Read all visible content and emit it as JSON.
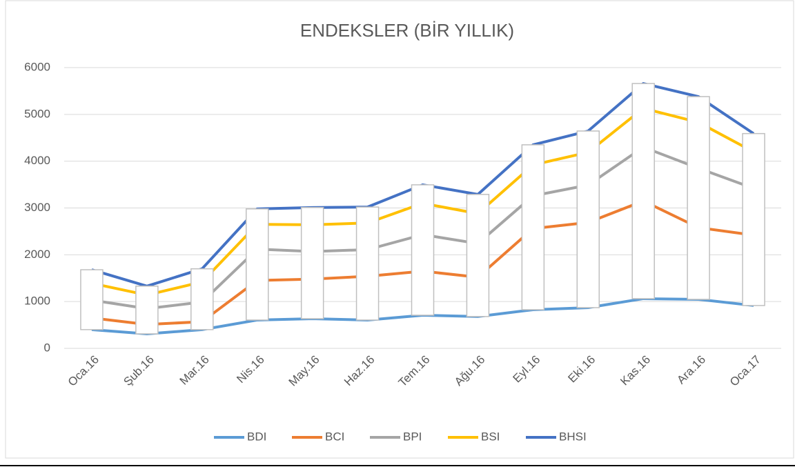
{
  "chart_data": {
    "type": "line",
    "title": "ENDEKSLER (BİR YILLIK)",
    "categories": [
      "Oca.16",
      "Şub.16",
      "Mar.16",
      "Nis.16",
      "May.16",
      "Haz.16",
      "Tem.16",
      "Ağu.16",
      "Eyl.16",
      "Eki.16",
      "Kas.16",
      "Ara.16",
      "Oca.17"
    ],
    "series": [
      {
        "name": "BDI",
        "color": "#5b9bd5",
        "values": [
          400,
          310,
          400,
          605,
          634,
          605,
          708,
          680,
          826,
          870,
          1062,
          1047,
          915
        ]
      },
      {
        "name": "BCI",
        "color": "#ed7d31",
        "values": [
          650,
          510,
          570,
          1450,
          1480,
          1540,
          1650,
          1520,
          2560,
          2690,
          3150,
          2580,
          2420
        ]
      },
      {
        "name": "BPI",
        "color": "#a5a5a5",
        "values": [
          1030,
          850,
          990,
          2120,
          2070,
          2110,
          2430,
          2240,
          3260,
          3490,
          4300,
          3850,
          3420
        ]
      },
      {
        "name": "BSI",
        "color": "#ffc000",
        "values": [
          1390,
          1140,
          1420,
          2650,
          2640,
          2680,
          3100,
          2880,
          3920,
          4190,
          5130,
          4830,
          4200
        ]
      },
      {
        "name": "BHSI",
        "color": "#4472c4",
        "values": [
          1680,
          1330,
          1700,
          2980,
          3010,
          3020,
          3495,
          3290,
          4350,
          4645,
          5660,
          5380,
          4590
        ]
      }
    ],
    "ylim": [
      0,
      6000
    ],
    "yticks": [
      0,
      1000,
      2000,
      3000,
      4000,
      5000,
      6000
    ],
    "grid": true,
    "legend": "bottom"
  }
}
